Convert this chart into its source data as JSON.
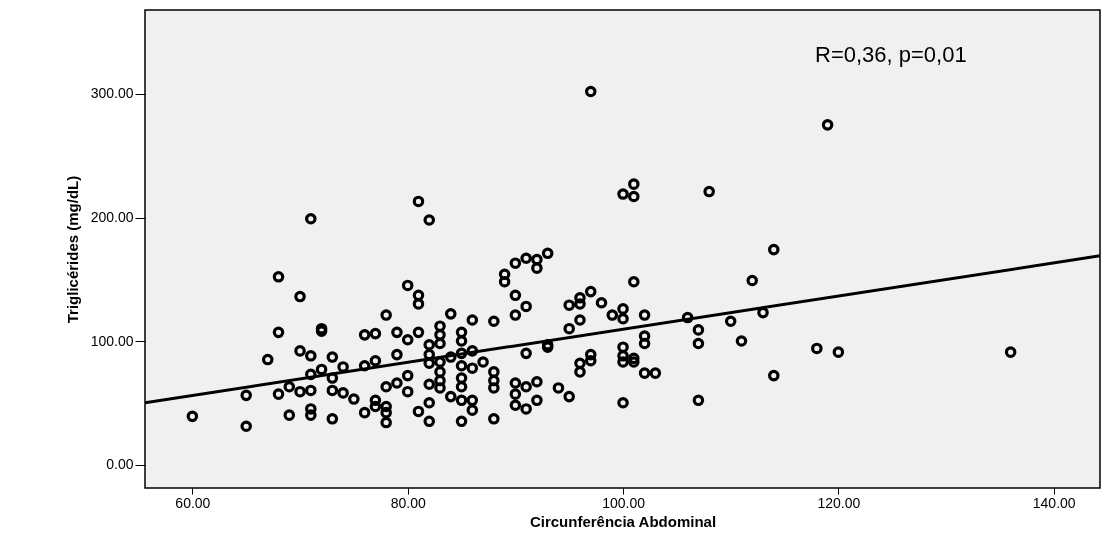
{
  "chart_data": {
    "type": "scatter",
    "xlabel": "Circunferência Abdominal",
    "ylabel": "Triglicérides (mg/dL)",
    "annotations": [
      "R=0,36, p=0,01"
    ],
    "xlim": [
      55.6,
      144.3
    ],
    "ylim": [
      -19,
      368
    ],
    "xticks": [
      {
        "value": 60,
        "label": "60.00"
      },
      {
        "value": 80,
        "label": "80.00"
      },
      {
        "value": 100,
        "label": "100.00"
      },
      {
        "value": 120,
        "label": "120.00"
      },
      {
        "value": 140,
        "label": "140.00"
      }
    ],
    "yticks": [
      {
        "value": 0,
        "label": "0.00"
      },
      {
        "value": 100,
        "label": "100.00"
      },
      {
        "value": 200,
        "label": "200.00"
      },
      {
        "value": 300,
        "label": "300.00"
      }
    ],
    "grid": false,
    "marker": "circle",
    "series": [
      {
        "color": "#000000",
        "x": [
          60,
          65,
          65,
          67,
          68,
          68,
          68,
          69,
          69,
          70,
          70,
          70,
          71,
          71,
          71,
          71,
          71,
          71,
          72,
          72,
          72,
          73,
          73,
          73,
          73,
          74,
          74,
          75,
          76,
          76,
          76,
          77,
          77,
          77,
          77,
          78,
          78,
          78,
          78,
          78,
          79,
          79,
          79,
          80,
          80,
          80,
          80,
          81,
          81,
          81,
          81,
          81,
          82,
          82,
          82,
          82,
          82,
          82,
          82,
          83,
          83,
          83,
          83,
          83,
          83,
          83,
          84,
          84,
          84,
          85,
          85,
          85,
          85,
          85,
          85,
          85,
          85,
          86,
          86,
          86,
          86,
          86,
          87,
          88,
          88,
          88,
          88,
          88,
          89,
          89,
          90,
          90,
          90,
          90,
          90,
          90,
          91,
          91,
          91,
          91,
          91,
          92,
          92,
          92,
          92,
          93,
          93,
          93,
          94,
          95,
          95,
          95,
          96,
          96,
          96,
          96,
          96,
          97,
          97,
          97,
          97,
          98,
          99,
          100,
          100,
          100,
          100,
          100,
          100,
          100,
          101,
          101,
          101,
          101,
          101,
          102,
          102,
          102,
          102,
          103,
          106,
          107,
          107,
          107,
          108,
          110,
          111,
          112,
          113,
          114,
          114,
          118,
          119,
          120,
          136
        ],
        "values": [
          39,
          31,
          56,
          85,
          152,
          107,
          57,
          63,
          40,
          136,
          92,
          59,
          199,
          88,
          73,
          60,
          45,
          40,
          110,
          108,
          77,
          87,
          70,
          60,
          37,
          79,
          58,
          53,
          105,
          80,
          42,
          106,
          84,
          52,
          47,
          121,
          63,
          47,
          42,
          34,
          107,
          89,
          66,
          145,
          101,
          72,
          59,
          213,
          137,
          130,
          107,
          43,
          198,
          97,
          89,
          82,
          65,
          50,
          35,
          112,
          105,
          98,
          83,
          75,
          68,
          62,
          122,
          87,
          55,
          107,
          100,
          90,
          80,
          70,
          63,
          52,
          35,
          117,
          92,
          78,
          52,
          44,
          83,
          116,
          75,
          68,
          62,
          37,
          154,
          148,
          163,
          137,
          121,
          66,
          57,
          48,
          167,
          128,
          90,
          63,
          45,
          166,
          159,
          67,
          52,
          171,
          97,
          95,
          62,
          129,
          110,
          55,
          135,
          130,
          117,
          82,
          75,
          302,
          140,
          89,
          84,
          131,
          121,
          219,
          126,
          118,
          95,
          88,
          83,
          50,
          227,
          217,
          148,
          86,
          83,
          121,
          104,
          98,
          74,
          74,
          119,
          109,
          98,
          52,
          221,
          116,
          100,
          149,
          123,
          174,
          72,
          94,
          275,
          91,
          91
        ]
      },
      {
        "type": "line",
        "color": "#000000",
        "line_style": "solid",
        "marker": "none",
        "x": [
          55.6,
          144.3
        ],
        "values": [
          50,
          169
        ]
      }
    ]
  }
}
